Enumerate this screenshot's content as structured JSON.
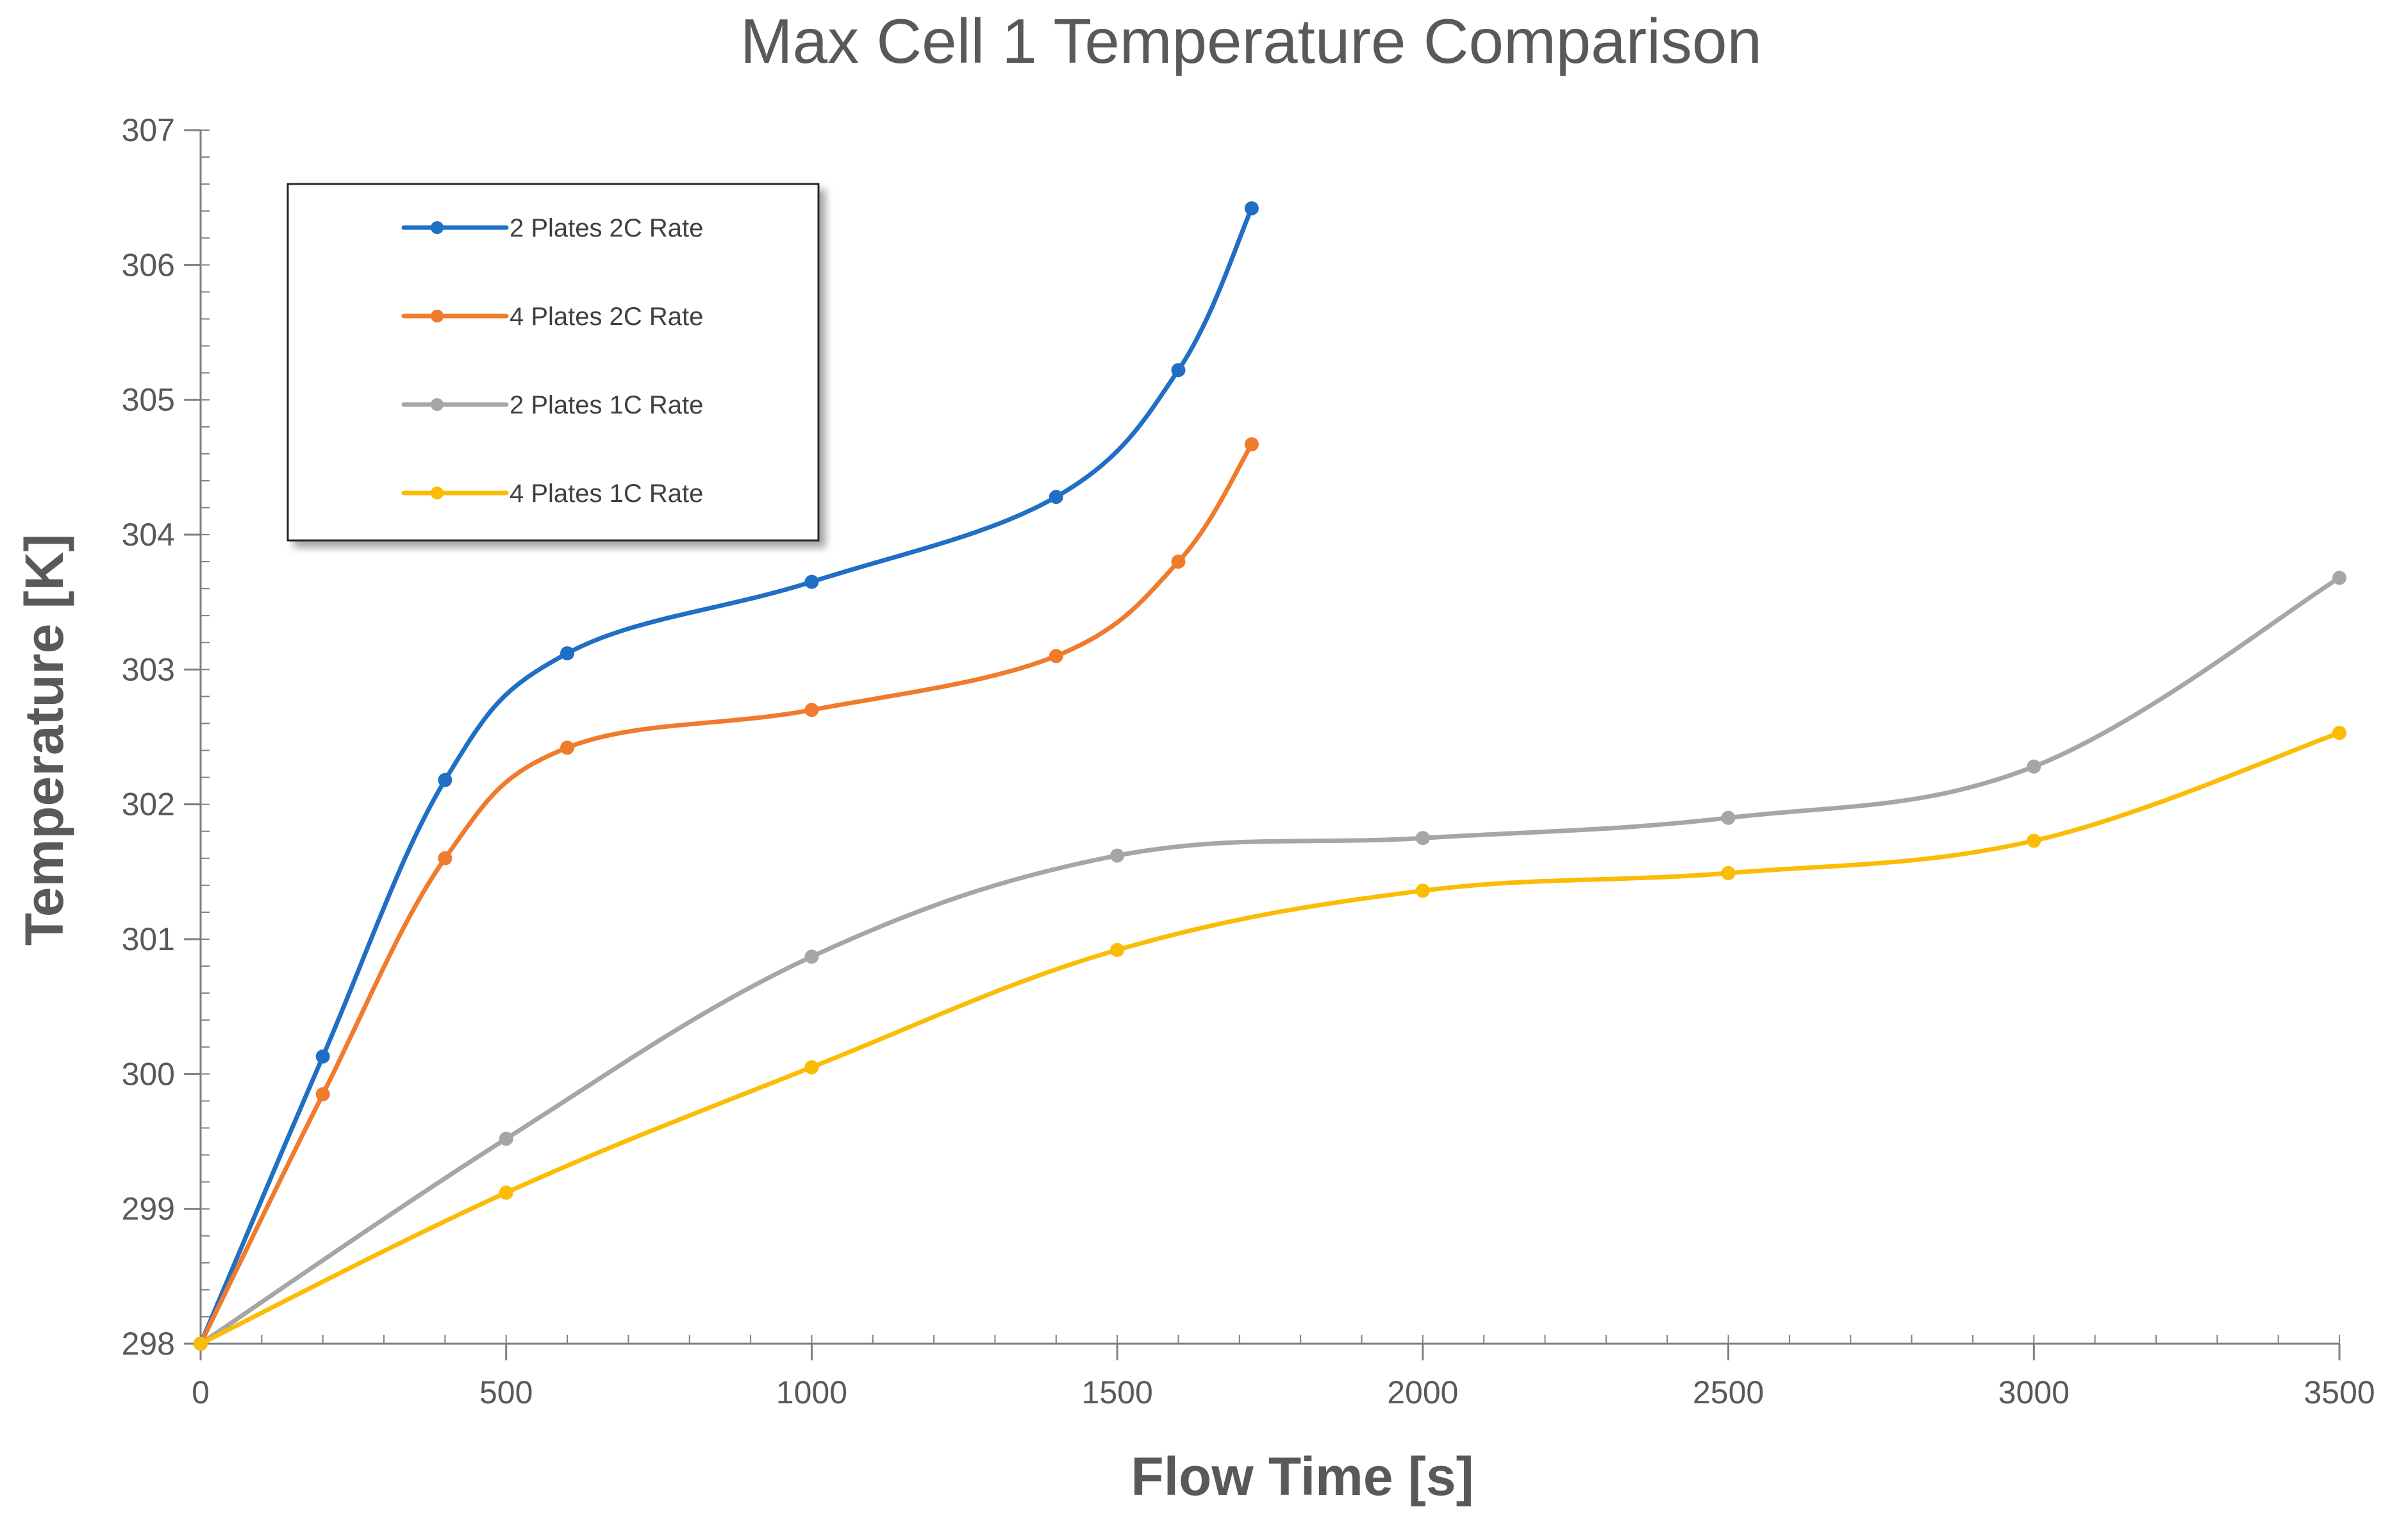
{
  "chart_data": {
    "type": "line",
    "title": "Max Cell 1 Temperature Comparison",
    "xlabel": "Flow Time [s]",
    "ylabel": "Temperature [K]",
    "xlim": [
      0,
      3500
    ],
    "ylim": [
      298,
      307
    ],
    "xticks": [
      0,
      500,
      1000,
      1500,
      2000,
      2500,
      3000,
      3500
    ],
    "yticks": [
      298,
      299,
      300,
      301,
      302,
      303,
      304,
      305,
      306,
      307
    ],
    "grid": false,
    "legend_position": "top-left",
    "series": [
      {
        "name": "2 Plates 2C Rate",
        "color": "#1f6fc5",
        "x": [
          0,
          200,
          400,
          600,
          1000,
          1400,
          1600,
          1720
        ],
        "y": [
          298.0,
          300.13,
          302.18,
          303.12,
          303.65,
          304.28,
          305.22,
          306.42
        ]
      },
      {
        "name": "4 Plates 2C Rate",
        "color": "#f07b2c",
        "x": [
          0,
          200,
          400,
          600,
          1000,
          1400,
          1600,
          1720
        ],
        "y": [
          298.0,
          299.85,
          301.6,
          302.42,
          302.7,
          303.1,
          303.8,
          304.67
        ]
      },
      {
        "name": "2 Plates 1C Rate",
        "color": "#a6a6a6",
        "x": [
          0,
          500,
          1000,
          1500,
          2000,
          2500,
          3000,
          3500
        ],
        "y": [
          298.0,
          299.52,
          300.87,
          301.62,
          301.75,
          301.9,
          302.28,
          303.68
        ]
      },
      {
        "name": "4 Plates 1C Rate",
        "color": "#fbbc05",
        "x": [
          0,
          500,
          1000,
          1500,
          2000,
          2500,
          3000,
          3500
        ],
        "y": [
          298.0,
          299.12,
          300.05,
          300.92,
          301.36,
          301.49,
          301.73,
          302.53
        ]
      }
    ]
  }
}
